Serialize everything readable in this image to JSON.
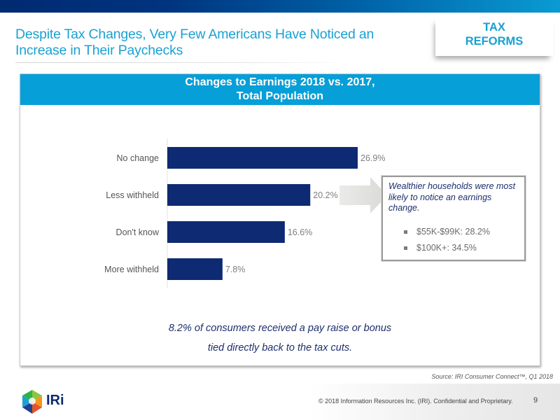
{
  "header": {
    "title_line1": "Despite Tax Changes, Very Few Americans Have Noticed an",
    "title_line2": "Increase in Their Paychecks",
    "tag_line1": "TAX",
    "tag_line2": "REFORMS"
  },
  "colors": {
    "bar": "#0d2a73",
    "header_blue": "#069fd8",
    "title_blue": "#1aa1d3",
    "navy_text": "#1d2e6e",
    "value_label": "#7f7f7f"
  },
  "chart_data": {
    "type": "bar",
    "orientation": "horizontal",
    "title": "Changes to Earnings 2018 vs. 2017,",
    "subtitle": "Total Population",
    "categories": [
      "No change",
      "Less withheld",
      "Don't know",
      "More withheld"
    ],
    "values": [
      26.9,
      20.2,
      16.6,
      7.8
    ],
    "data_labels": [
      "26.9%",
      "20.2%",
      "16.6%",
      "7.8%"
    ],
    "xlabel": "",
    "ylabel": "",
    "xlim": [
      0,
      30
    ],
    "grid": false,
    "legend": "none"
  },
  "callout": {
    "text": "Wealthier households were most likely to notice an earnings change.",
    "bullets": [
      "$55K-$99K: 28.2%",
      "$100K+: 34.5%"
    ]
  },
  "note": {
    "line1": "8.2% of consumers received a pay raise or bonus",
    "line2": "tied directly back to the tax cuts."
  },
  "footer": {
    "source": "Source: IRI Consumer Connect™, Q1 2018",
    "copyright": "© 2018 Information Resources Inc. (IRI). Confidential and Proprietary.",
    "page_number": "9",
    "logo_text": "IRi"
  }
}
